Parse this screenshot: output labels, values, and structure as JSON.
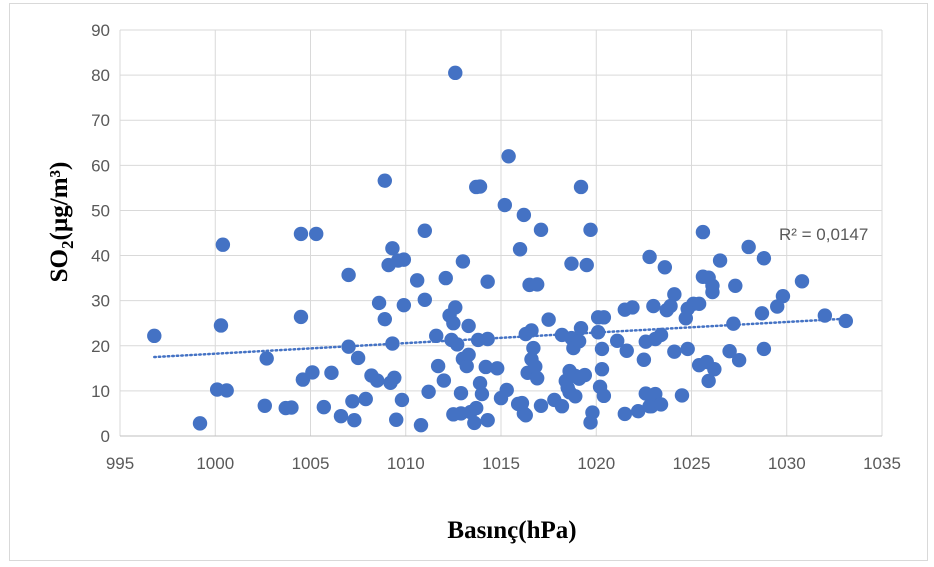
{
  "chart_data": {
    "type": "scatter",
    "title": "",
    "xlabel": "Basınç(hPa)",
    "ylabel": {
      "prefix": "SO",
      "subscript": "2",
      "suffix": "(µg/m³)"
    },
    "xlim": [
      995,
      1035
    ],
    "ylim": [
      0,
      90
    ],
    "xticks": [
      995,
      1000,
      1005,
      1010,
      1015,
      1020,
      1025,
      1030,
      1035
    ],
    "yticks": [
      0,
      10,
      20,
      30,
      40,
      50,
      60,
      70,
      80,
      90
    ],
    "grid": true,
    "legend": "none",
    "marker_color": "#4472c4",
    "trendline": {
      "type": "linear",
      "style": "dotted",
      "color": "#4472c4",
      "x": [
        996.8,
        1033.1
      ],
      "y": [
        17.5,
        26.0
      ],
      "label": "R² = 0,0147"
    },
    "points": [
      [
        996.8,
        22.2
      ],
      [
        999.2,
        2.8
      ],
      [
        1000.1,
        10.3
      ],
      [
        1000.3,
        24.5
      ],
      [
        1000.4,
        42.4
      ],
      [
        1000.6,
        10.1
      ],
      [
        1002.6,
        6.7
      ],
      [
        1002.7,
        17.2
      ],
      [
        1003.7,
        6.2
      ],
      [
        1004.0,
        6.3
      ],
      [
        1004.5,
        26.4
      ],
      [
        1004.5,
        44.8
      ],
      [
        1004.6,
        12.5
      ],
      [
        1005.1,
        14.1
      ],
      [
        1005.3,
        44.8
      ],
      [
        1005.7,
        6.4
      ],
      [
        1006.1,
        14.0
      ],
      [
        1006.6,
        4.4
      ],
      [
        1007.0,
        19.8
      ],
      [
        1007.0,
        35.7
      ],
      [
        1007.2,
        7.7
      ],
      [
        1007.3,
        3.5
      ],
      [
        1007.5,
        17.3
      ],
      [
        1007.9,
        8.2
      ],
      [
        1008.2,
        13.4
      ],
      [
        1008.5,
        12.3
      ],
      [
        1008.6,
        29.5
      ],
      [
        1008.9,
        56.6
      ],
      [
        1008.9,
        25.9
      ],
      [
        1009.1,
        37.9
      ],
      [
        1009.2,
        11.8
      ],
      [
        1009.3,
        20.5
      ],
      [
        1009.3,
        41.6
      ],
      [
        1009.4,
        12.9
      ],
      [
        1009.5,
        3.6
      ],
      [
        1009.6,
        38.9
      ],
      [
        1009.8,
        8.0
      ],
      [
        1009.9,
        29.0
      ],
      [
        1009.9,
        39.1
      ],
      [
        1010.6,
        34.5
      ],
      [
        1010.8,
        2.4
      ],
      [
        1011.0,
        45.5
      ],
      [
        1011.0,
        30.2
      ],
      [
        1011.2,
        9.8
      ],
      [
        1011.6,
        22.2
      ],
      [
        1011.7,
        15.5
      ],
      [
        1012.0,
        12.3
      ],
      [
        1012.1,
        35.0
      ],
      [
        1012.3,
        26.7
      ],
      [
        1012.4,
        21.3
      ],
      [
        1012.5,
        25.0
      ],
      [
        1012.5,
        4.8
      ],
      [
        1012.6,
        80.5
      ],
      [
        1012.6,
        28.5
      ],
      [
        1012.7,
        20.3
      ],
      [
        1012.9,
        5.0
      ],
      [
        1012.9,
        9.5
      ],
      [
        1013.0,
        38.7
      ],
      [
        1013.0,
        17.1
      ],
      [
        1013.2,
        15.5
      ],
      [
        1013.3,
        24.4
      ],
      [
        1013.3,
        18.0
      ],
      [
        1013.4,
        5.3
      ],
      [
        1013.6,
        2.9
      ],
      [
        1013.7,
        55.2
      ],
      [
        1013.7,
        6.2
      ],
      [
        1013.8,
        21.3
      ],
      [
        1013.9,
        55.3
      ],
      [
        1013.9,
        11.7
      ],
      [
        1014.0,
        9.3
      ],
      [
        1014.2,
        15.3
      ],
      [
        1014.3,
        3.5
      ],
      [
        1014.3,
        21.5
      ],
      [
        1014.3,
        34.2
      ],
      [
        1014.8,
        15.0
      ],
      [
        1015.0,
        8.4
      ],
      [
        1015.2,
        51.2
      ],
      [
        1015.3,
        10.2
      ],
      [
        1015.4,
        62.0
      ],
      [
        1015.9,
        7.1
      ],
      [
        1016.0,
        41.4
      ],
      [
        1016.1,
        7.3
      ],
      [
        1016.2,
        49.0
      ],
      [
        1016.2,
        5.0
      ],
      [
        1016.3,
        22.6
      ],
      [
        1016.3,
        4.6
      ],
      [
        1016.4,
        14.0
      ],
      [
        1016.5,
        33.5
      ],
      [
        1016.6,
        17.0
      ],
      [
        1016.6,
        23.4
      ],
      [
        1016.7,
        19.5
      ],
      [
        1016.8,
        15.4
      ],
      [
        1016.9,
        12.8
      ],
      [
        1016.9,
        33.6
      ],
      [
        1017.1,
        45.7
      ],
      [
        1017.1,
        6.7
      ],
      [
        1017.5,
        25.8
      ],
      [
        1017.8,
        8.0
      ],
      [
        1018.2,
        6.6
      ],
      [
        1018.2,
        22.4
      ],
      [
        1018.4,
        12.2
      ],
      [
        1018.5,
        10.7
      ],
      [
        1018.6,
        14.4
      ],
      [
        1018.6,
        9.7
      ],
      [
        1018.7,
        38.2
      ],
      [
        1018.7,
        21.7
      ],
      [
        1018.8,
        19.5
      ],
      [
        1018.9,
        13.3
      ],
      [
        1018.9,
        8.8
      ],
      [
        1019.1,
        12.7
      ],
      [
        1019.1,
        21.0
      ],
      [
        1019.2,
        55.2
      ],
      [
        1019.2,
        23.9
      ],
      [
        1019.4,
        13.5
      ],
      [
        1019.5,
        37.9
      ],
      [
        1019.7,
        45.7
      ],
      [
        1019.7,
        3.0
      ],
      [
        1019.8,
        5.2
      ],
      [
        1020.1,
        26.3
      ],
      [
        1020.1,
        23.0
      ],
      [
        1020.2,
        10.9
      ],
      [
        1020.3,
        14.8
      ],
      [
        1020.3,
        19.3
      ],
      [
        1020.4,
        8.9
      ],
      [
        1020.4,
        26.3
      ],
      [
        1021.1,
        21.1
      ],
      [
        1021.5,
        4.9
      ],
      [
        1021.5,
        28.0
      ],
      [
        1021.6,
        18.9
      ],
      [
        1021.9,
        28.5
      ],
      [
        1022.2,
        5.5
      ],
      [
        1022.5,
        16.9
      ],
      [
        1022.6,
        9.4
      ],
      [
        1022.6,
        20.9
      ],
      [
        1022.8,
        6.6
      ],
      [
        1022.8,
        39.7
      ],
      [
        1022.9,
        6.6
      ],
      [
        1023.0,
        28.8
      ],
      [
        1023.1,
        9.3
      ],
      [
        1023.1,
        21.5
      ],
      [
        1023.4,
        7.0
      ],
      [
        1023.4,
        22.4
      ],
      [
        1023.6,
        37.4
      ],
      [
        1023.7,
        27.9
      ],
      [
        1023.9,
        28.8
      ],
      [
        1024.1,
        18.7
      ],
      [
        1024.1,
        31.4
      ],
      [
        1024.5,
        9.0
      ],
      [
        1024.7,
        26.1
      ],
      [
        1024.8,
        19.3
      ],
      [
        1024.8,
        28.2
      ],
      [
        1025.1,
        29.3
      ],
      [
        1025.4,
        29.3
      ],
      [
        1025.4,
        15.7
      ],
      [
        1025.6,
        45.2
      ],
      [
        1025.6,
        35.3
      ],
      [
        1025.8,
        16.4
      ],
      [
        1025.9,
        12.2
      ],
      [
        1025.9,
        35.1
      ],
      [
        1026.1,
        33.3
      ],
      [
        1026.1,
        31.9
      ],
      [
        1026.2,
        14.8
      ],
      [
        1026.5,
        38.9
      ],
      [
        1027.0,
        18.8
      ],
      [
        1027.2,
        24.9
      ],
      [
        1027.3,
        33.3
      ],
      [
        1027.5,
        16.8
      ],
      [
        1028.0,
        41.9
      ],
      [
        1028.7,
        27.2
      ],
      [
        1028.8,
        39.4
      ],
      [
        1028.8,
        19.3
      ],
      [
        1029.5,
        28.7
      ],
      [
        1029.8,
        31.0
      ],
      [
        1030.8,
        34.3
      ],
      [
        1032.0,
        26.7
      ],
      [
        1033.1,
        25.5
      ]
    ]
  }
}
